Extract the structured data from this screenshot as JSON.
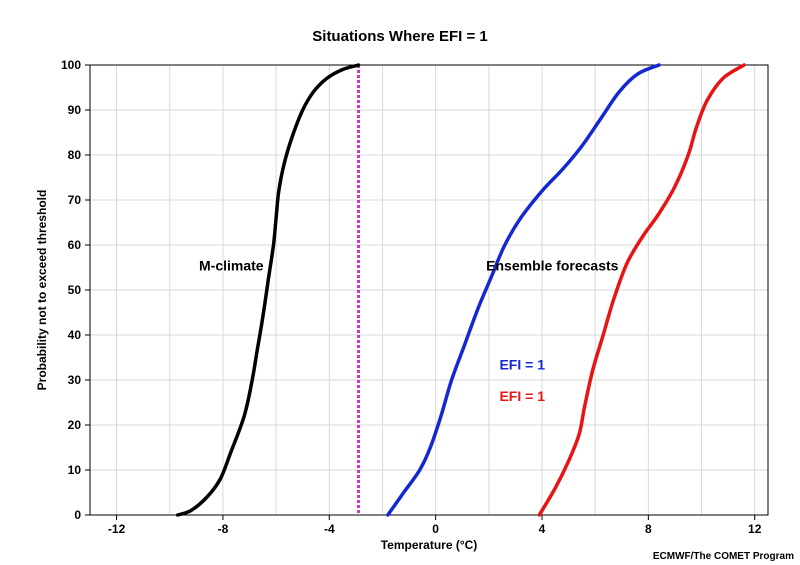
{
  "chart_data": {
    "type": "line",
    "title": "Situations Where EFI = 1",
    "xlabel": "Temperature (°C)",
    "ylabel": "Probability not to exceed threshold",
    "xlim": [
      -13,
      12.5
    ],
    "ylim": [
      0,
      100
    ],
    "xticks": [
      -12,
      -8,
      -4,
      0,
      4,
      8,
      12
    ],
    "yticks": [
      0,
      10,
      20,
      30,
      40,
      50,
      60,
      70,
      80,
      90,
      100
    ],
    "grid": true,
    "threshold": {
      "x": -2.9,
      "color": "#cc33cc",
      "style": "dotted"
    },
    "series": [
      {
        "color": "#000000",
        "points": [
          [
            -9.7,
            0
          ],
          [
            -9.2,
            1
          ],
          [
            -8.6,
            4
          ],
          [
            -8.1,
            8
          ],
          [
            -7.7,
            14
          ],
          [
            -7.2,
            22
          ],
          [
            -6.9,
            30
          ],
          [
            -6.7,
            37
          ],
          [
            -6.5,
            44
          ],
          [
            -6.3,
            52
          ],
          [
            -6.1,
            60
          ],
          [
            -6.0,
            66
          ],
          [
            -5.9,
            72
          ],
          [
            -5.7,
            78
          ],
          [
            -5.4,
            84
          ],
          [
            -5.0,
            90
          ],
          [
            -4.6,
            94
          ],
          [
            -4.1,
            97
          ],
          [
            -3.5,
            99
          ],
          [
            -2.9,
            100
          ]
        ]
      },
      {
        "color": "#1428d2",
        "points": [
          [
            -1.8,
            0
          ],
          [
            -1.2,
            5
          ],
          [
            -0.6,
            10
          ],
          [
            -0.2,
            15
          ],
          [
            0.2,
            22
          ],
          [
            0.6,
            30
          ],
          [
            1.1,
            38
          ],
          [
            1.6,
            46
          ],
          [
            2.1,
            53
          ],
          [
            2.6,
            60
          ],
          [
            3.2,
            66
          ],
          [
            4.0,
            72
          ],
          [
            4.8,
            77
          ],
          [
            5.5,
            82
          ],
          [
            6.2,
            88
          ],
          [
            6.9,
            94
          ],
          [
            7.6,
            98
          ],
          [
            8.4,
            100
          ]
        ]
      },
      {
        "color": "#e81414",
        "points": [
          [
            3.9,
            0
          ],
          [
            4.5,
            6
          ],
          [
            5.0,
            12
          ],
          [
            5.4,
            18
          ],
          [
            5.6,
            24
          ],
          [
            5.9,
            32
          ],
          [
            6.3,
            40
          ],
          [
            6.7,
            48
          ],
          [
            7.2,
            56
          ],
          [
            7.8,
            62
          ],
          [
            8.4,
            67
          ],
          [
            9.0,
            73
          ],
          [
            9.5,
            80
          ],
          [
            9.8,
            86
          ],
          [
            10.2,
            92
          ],
          [
            10.8,
            97
          ],
          [
            11.6,
            100
          ]
        ]
      }
    ],
    "annotations": [
      {
        "text": "M-climate",
        "x": -8.9,
        "y": 55.5,
        "color": "#000000"
      },
      {
        "text": "Ensemble forecasts",
        "x": 1.9,
        "y": 55.5,
        "color": "#000000"
      },
      {
        "text": "EFI = 1",
        "x": 2.4,
        "y": 33.5,
        "color": "#1428d2"
      },
      {
        "text": "EFI = 1",
        "x": 2.4,
        "y": 26.5,
        "color": "#e81414"
      }
    ]
  },
  "credit": "ECMWF/The COMET Program"
}
